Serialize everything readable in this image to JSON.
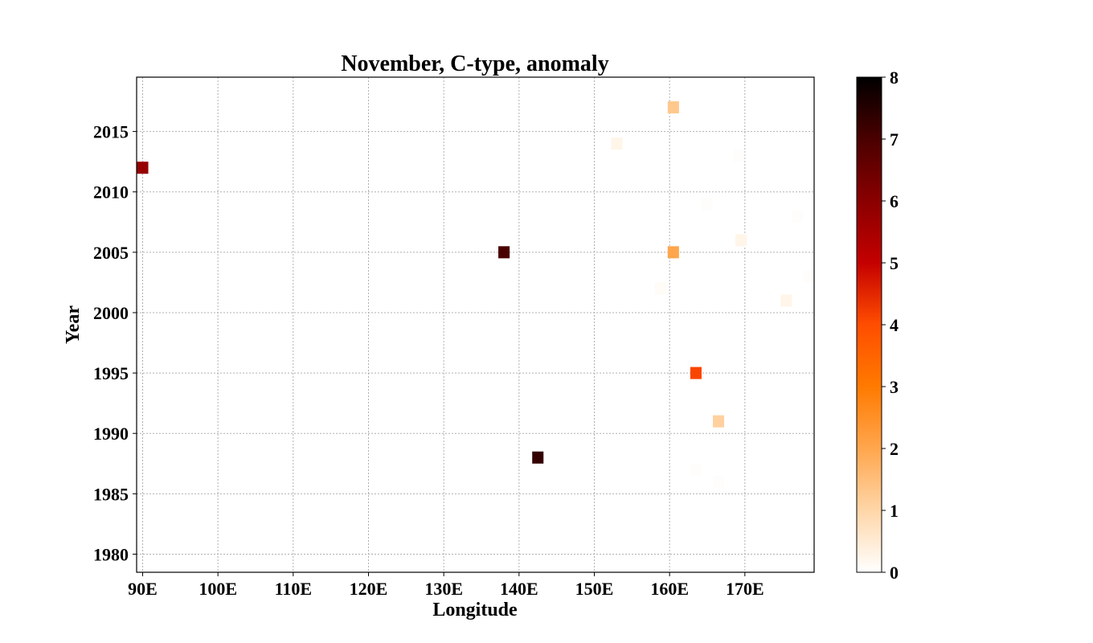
{
  "chart_data": {
    "type": "heatmap",
    "title": "November, C-type, anomaly",
    "xlabel": "Longitude",
    "ylabel": "Year",
    "xlim": [
      89.2,
      179.2
    ],
    "ylim": [
      1978.5,
      2019.5
    ],
    "xticks": [
      {
        "value": 90,
        "label": "90E"
      },
      {
        "value": 100,
        "label": "100E"
      },
      {
        "value": 110,
        "label": "110E"
      },
      {
        "value": 120,
        "label": "120E"
      },
      {
        "value": 130,
        "label": "130E"
      },
      {
        "value": 140,
        "label": "140E"
      },
      {
        "value": 150,
        "label": "150E"
      },
      {
        "value": 160,
        "label": "160E"
      },
      {
        "value": 170,
        "label": "170E"
      }
    ],
    "yticks": [
      {
        "value": 1980,
        "label": "1980"
      },
      {
        "value": 1985,
        "label": "1985"
      },
      {
        "value": 1990,
        "label": "1990"
      },
      {
        "value": 1995,
        "label": "1995"
      },
      {
        "value": 2000,
        "label": "2000"
      },
      {
        "value": 2005,
        "label": "2005"
      },
      {
        "value": 2010,
        "label": "2010"
      },
      {
        "value": 2015,
        "label": "2015"
      }
    ],
    "grid": true,
    "cell_width_deg": 1.5,
    "colorbar": {
      "min": 0,
      "max": 8,
      "ticks": [
        "0",
        "1",
        "2",
        "3",
        "4",
        "5",
        "6",
        "7",
        "8"
      ],
      "colormap": "gist_heat_r",
      "stops": [
        "#ffffff",
        "#ffd6a8",
        "#ffa64d",
        "#ff7a00",
        "#ff4d00",
        "#c40000",
        "#8a0000",
        "#4a0000",
        "#000000"
      ]
    },
    "points": [
      {
        "lon": 90.0,
        "year": 2012,
        "value": 5.8
      },
      {
        "lon": 138.0,
        "year": 2005,
        "value": 7.0
      },
      {
        "lon": 142.5,
        "year": 1988,
        "value": 7.3
      },
      {
        "lon": 153.0,
        "year": 2014,
        "value": 0.25
      },
      {
        "lon": 158.8,
        "year": 2002,
        "value": 0.1
      },
      {
        "lon": 160.5,
        "year": 2017,
        "value": 1.3
      },
      {
        "lon": 160.5,
        "year": 2005,
        "value": 2.0
      },
      {
        "lon": 163.5,
        "year": 1995,
        "value": 4.1
      },
      {
        "lon": 163.5,
        "year": 1987,
        "value": 0.05
      },
      {
        "lon": 165.0,
        "year": 2009,
        "value": 0.05
      },
      {
        "lon": 166.5,
        "year": 1991,
        "value": 1.1
      },
      {
        "lon": 166.5,
        "year": 1986,
        "value": 0.05
      },
      {
        "lon": 169.2,
        "year": 2013,
        "value": 0.05
      },
      {
        "lon": 169.5,
        "year": 2006,
        "value": 0.25
      },
      {
        "lon": 175.5,
        "year": 2001,
        "value": 0.25
      },
      {
        "lon": 177.0,
        "year": 2008,
        "value": 0.05
      },
      {
        "lon": 178.5,
        "year": 2003,
        "value": 0.05
      }
    ]
  }
}
